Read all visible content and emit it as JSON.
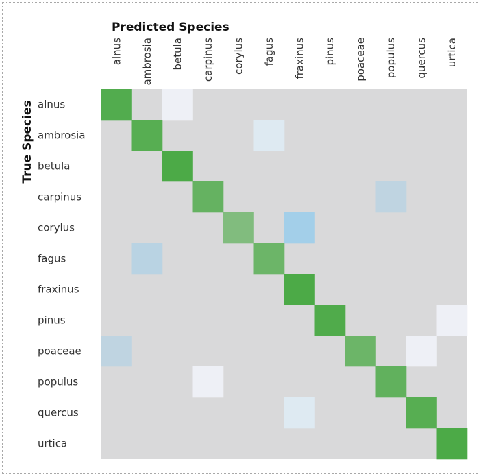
{
  "chart_data": {
    "type": "heatmap",
    "xlabel": "Predicted Species",
    "ylabel": "True Species",
    "x_categories": [
      "alnus",
      "ambrosia",
      "betula",
      "carpinus",
      "corylus",
      "fagus",
      "fraxinus",
      "pinus",
      "poaceae",
      "populus",
      "quercus",
      "urtica"
    ],
    "y_categories": [
      "alnus",
      "ambrosia",
      "betula",
      "carpinus",
      "corylus",
      "fagus",
      "fraxinus",
      "pinus",
      "poaceae",
      "populus",
      "quercus",
      "urtica"
    ],
    "values": [
      [
        0.97,
        0,
        0.03,
        0,
        0,
        0,
        0,
        0,
        0,
        0,
        0,
        0
      ],
      [
        0,
        0.95,
        0,
        0,
        0,
        0.05,
        0,
        0,
        0,
        0,
        0,
        0
      ],
      [
        0,
        0,
        1.0,
        0,
        0,
        0,
        0,
        0,
        0,
        0,
        0,
        0
      ],
      [
        0,
        0,
        0,
        0.88,
        0,
        0,
        0,
        0,
        0,
        0.12,
        0,
        0
      ],
      [
        0,
        0,
        0,
        0,
        0.75,
        0,
        0.25,
        0,
        0,
        0,
        0,
        0
      ],
      [
        0,
        0.15,
        0,
        0,
        0,
        0.85,
        0,
        0,
        0,
        0,
        0,
        0
      ],
      [
        0,
        0,
        0,
        0,
        0,
        0,
        1.0,
        0,
        0,
        0,
        0,
        0
      ],
      [
        0,
        0,
        0,
        0,
        0,
        0,
        0,
        0.98,
        0,
        0,
        0,
        0.02
      ],
      [
        0.12,
        0,
        0,
        0,
        0,
        0,
        0,
        0,
        0.85,
        0,
        0.03,
        0
      ],
      [
        0,
        0,
        0,
        0.03,
        0,
        0,
        0,
        0,
        0,
        0.9,
        0,
        0
      ],
      [
        0,
        0,
        0,
        0,
        0,
        0,
        0.05,
        0,
        0,
        0,
        0.95,
        0
      ],
      [
        0,
        0,
        0,
        0,
        0,
        0,
        0,
        0,
        0,
        0,
        0,
        1.0
      ]
    ],
    "colors": {
      "background": "#d9d9da",
      "correct": "#4caa47",
      "error": "#a3cfe9"
    },
    "grid": false,
    "legend": "none"
  }
}
